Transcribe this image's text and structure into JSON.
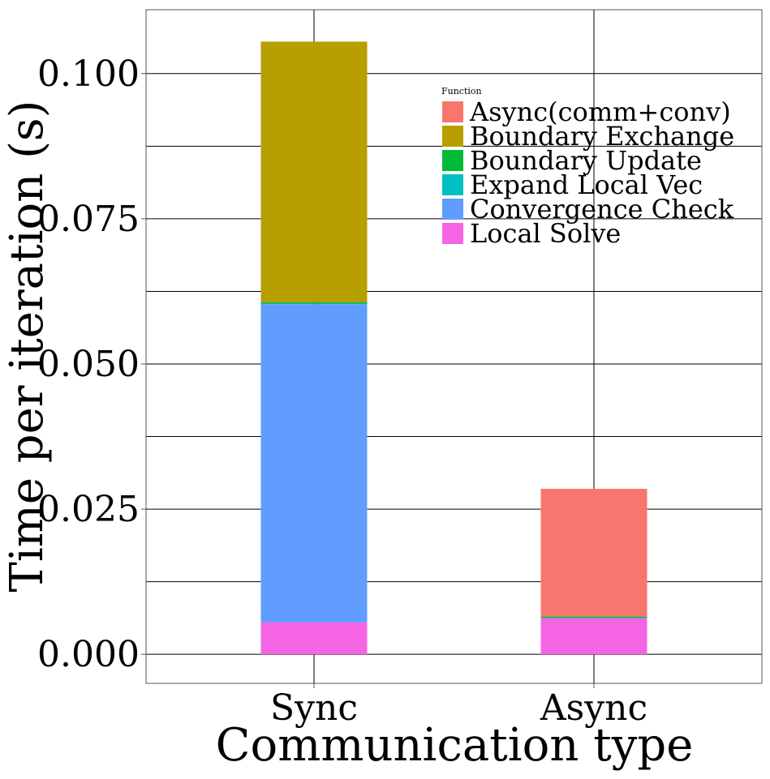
{
  "chart_data": {
    "type": "bar",
    "stacked": true,
    "title": "",
    "xlabel": "Communication type",
    "ylabel": "Time per iteration (s)",
    "categories": [
      "Sync",
      "Async"
    ],
    "ylim": [
      -0.005,
      0.111
    ],
    "yticks": [
      0.0,
      0.025,
      0.05,
      0.075,
      0.1
    ],
    "ytick_labels": [
      "0.000",
      "0.025",
      "0.050",
      "0.075",
      "0.100"
    ],
    "grid": true,
    "legend": {
      "title": "Function",
      "placement": "top-right"
    },
    "series": [
      {
        "name": "Local Solve",
        "color": "#F564E3",
        "values": [
          0.0055,
          0.0062
        ]
      },
      {
        "name": "Convergence Check",
        "color": "#619CFF",
        "values": [
          0.0548,
          0.0
        ]
      },
      {
        "name": "Expand Local Vec",
        "color": "#00BFC4",
        "values": [
          0.0001,
          0.0001
        ]
      },
      {
        "name": "Boundary Update",
        "color": "#00BA38",
        "values": [
          0.0002,
          0.0002
        ]
      },
      {
        "name": "Boundary Exchange",
        "color": "#B79F00",
        "values": [
          0.0449,
          0.0
        ]
      },
      {
        "name": "Async(comm+conv)",
        "color": "#F8766D",
        "values": [
          0.0,
          0.022
        ]
      }
    ],
    "legend_order": [
      "Async(comm+conv)",
      "Boundary Exchange",
      "Boundary Update",
      "Expand Local Vec",
      "Convergence Check",
      "Local Solve"
    ]
  }
}
